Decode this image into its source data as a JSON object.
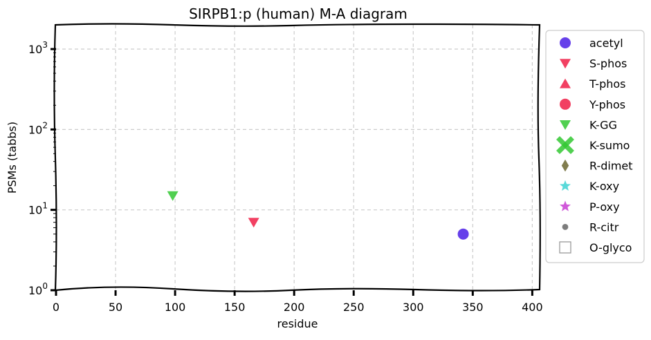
{
  "chart_data": {
    "type": "scatter",
    "title": "SIRPB1:p (human) M-A diagram",
    "xlabel": "residue",
    "ylabel": "PSMs (tabbs)",
    "xlim": [
      0,
      405
    ],
    "ylim": [
      1,
      2000
    ],
    "yscale": "log",
    "grid": true,
    "legend_position": "right-outside",
    "x_ticks": [
      "0",
      "50",
      "100",
      "150",
      "200",
      "250",
      "300",
      "350",
      "400"
    ],
    "y_ticks": [
      {
        "base": "10",
        "exp": "0"
      },
      {
        "base": "10",
        "exp": "1"
      },
      {
        "base": "10",
        "exp": "2"
      },
      {
        "base": "10",
        "exp": "3"
      }
    ],
    "series": [
      {
        "name": "acetyl",
        "marker": "circle",
        "color": "#4b1ee6",
        "points": [
          {
            "x": 342,
            "y": 5
          }
        ]
      },
      {
        "name": "S-phos",
        "marker": "triangle-down",
        "color": "#f01e46",
        "points": [
          {
            "x": 166,
            "y": 7
          }
        ]
      },
      {
        "name": "T-phos",
        "marker": "triangle-up",
        "color": "#f01e46",
        "points": []
      },
      {
        "name": "Y-phos",
        "marker": "circle",
        "color": "#f01e46",
        "points": []
      },
      {
        "name": "K-GG",
        "marker": "triangle-down",
        "color": "#32c832",
        "points": [
          {
            "x": 98,
            "y": 15
          }
        ]
      },
      {
        "name": "K-sumo",
        "marker": "x-filled",
        "color": "#32c832",
        "points": []
      },
      {
        "name": "R-dimet",
        "marker": "diamond",
        "color": "#6b6630",
        "points": []
      },
      {
        "name": "K-oxy",
        "marker": "star",
        "color": "#3cd2d2",
        "points": []
      },
      {
        "name": "P-oxy",
        "marker": "star",
        "color": "#c83cd2",
        "points": []
      },
      {
        "name": "R-citr",
        "marker": "small-circle",
        "color": "#666666",
        "points": []
      },
      {
        "name": "O-glyco",
        "marker": "square-open",
        "color": "#999999",
        "points": []
      }
    ]
  }
}
